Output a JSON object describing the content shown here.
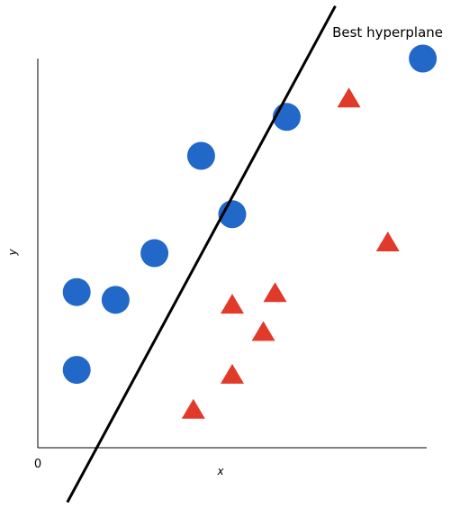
{
  "chart_data": {
    "type": "scatter",
    "title": "",
    "xlabel": "x",
    "ylabel": "y",
    "origin_label": "0",
    "xlim": [
      0,
      10
    ],
    "ylim": [
      0,
      10
    ],
    "grid": false,
    "annotation": "Best hyperplane",
    "hyperplane": {
      "points": [
        [
          0.76,
          -1.4
        ],
        [
          7.65,
          11.35
        ]
      ]
    },
    "series": [
      {
        "marker": "circle",
        "color": "#2268c8",
        "points": [
          [
            9.9,
            10.0
          ],
          [
            5.0,
            6.0
          ],
          [
            4.2,
            7.5
          ],
          [
            6.4,
            8.5
          ],
          [
            3.0,
            5.0
          ],
          [
            1.0,
            4.0
          ],
          [
            2.0,
            3.8
          ],
          [
            1.0,
            2.0
          ]
        ]
      },
      {
        "marker": "triangle",
        "color": "#e23a2a",
        "points": [
          [
            8.0,
            9.0
          ],
          [
            9.0,
            5.3
          ],
          [
            6.1,
            4.0
          ],
          [
            5.0,
            3.7
          ],
          [
            5.8,
            3.0
          ],
          [
            5.0,
            1.9
          ],
          [
            4.0,
            1.0
          ]
        ]
      }
    ]
  }
}
